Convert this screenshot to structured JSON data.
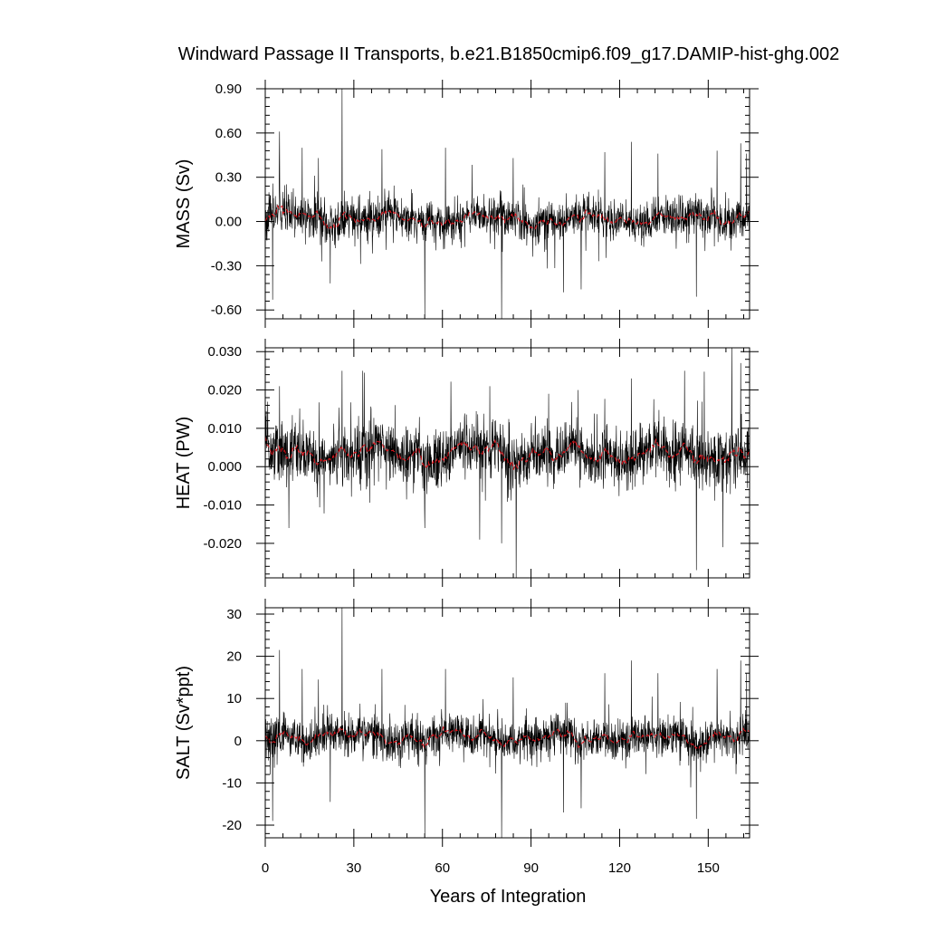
{
  "title": "Windward Passage II Transports, b.e21.B1850cmip6.f09_g17.DAMIP-hist-ghg.002",
  "xlabel": "Years of Integration",
  "colors": {
    "raw": "#000000",
    "smooth": "#e0141c",
    "frame": "#000000"
  },
  "chart_data": [
    {
      "type": "line",
      "panel": "mass",
      "ylabel": "MASS (Sv)",
      "xlim": [
        0,
        164
      ],
      "ylim": [
        -0.66,
        0.9
      ],
      "xticks": [
        0,
        30,
        60,
        90,
        120,
        150
      ],
      "yticks": [
        -0.6,
        -0.3,
        0.0,
        0.3,
        0.6,
        0.9
      ],
      "ytick_labels": [
        "-0.60",
        "-0.30",
        "0.00",
        "0.30",
        "0.60",
        "0.90"
      ],
      "series": [
        {
          "role": "monthly",
          "base_noise": 0.07,
          "mean": 0.02
        },
        {
          "role": "smoothed",
          "amplitude": 0.03
        }
      ],
      "spikes": [
        {
          "x": 2.5,
          "y": -0.53
        },
        {
          "x": 4.8,
          "y": 0.61
        },
        {
          "x": 12.5,
          "y": 0.5
        },
        {
          "x": 18.0,
          "y": 0.43
        },
        {
          "x": 22.0,
          "y": -0.42
        },
        {
          "x": 26.0,
          "y": 0.9
        },
        {
          "x": 39.5,
          "y": 0.49
        },
        {
          "x": 54.0,
          "y": -0.63
        },
        {
          "x": 61.0,
          "y": 0.5
        },
        {
          "x": 80.0,
          "y": -0.66
        },
        {
          "x": 84.0,
          "y": 0.43
        },
        {
          "x": 101.0,
          "y": -0.48
        },
        {
          "x": 107.0,
          "y": -0.46
        },
        {
          "x": 115.0,
          "y": 0.47
        },
        {
          "x": 124.0,
          "y": 0.54
        },
        {
          "x": 133.0,
          "y": 0.46
        },
        {
          "x": 146.0,
          "y": -0.51
        },
        {
          "x": 153.0,
          "y": 0.48
        },
        {
          "x": 161.0,
          "y": 0.53
        },
        {
          "x": 163.0,
          "y": 0.46
        }
      ]
    },
    {
      "type": "line",
      "panel": "heat",
      "ylabel": "HEAT (PW)",
      "xlim": [
        0,
        164
      ],
      "ylim": [
        -0.029,
        0.031
      ],
      "xticks": [
        0,
        30,
        60,
        90,
        120,
        150
      ],
      "yticks": [
        -0.02,
        -0.01,
        0.0,
        0.01,
        0.02,
        0.03
      ],
      "ytick_labels": [
        "-0.020",
        "-0.010",
        "0.000",
        "0.010",
        "0.020",
        "0.030"
      ],
      "series": [
        {
          "role": "monthly",
          "base_noise": 0.004,
          "mean": 0.0035
        },
        {
          "role": "smoothed",
          "amplitude": 0.002
        }
      ],
      "spikes": [
        {
          "x": 4.8,
          "y": 0.021
        },
        {
          "x": 8.0,
          "y": -0.016
        },
        {
          "x": 26.0,
          "y": 0.025
        },
        {
          "x": 33.0,
          "y": 0.025
        },
        {
          "x": 54.0,
          "y": -0.016
        },
        {
          "x": 76.0,
          "y": 0.021
        },
        {
          "x": 80.0,
          "y": -0.02
        },
        {
          "x": 85.0,
          "y": -0.029
        },
        {
          "x": 96.0,
          "y": 0.019
        },
        {
          "x": 106.0,
          "y": 0.02
        },
        {
          "x": 124.0,
          "y": 0.023
        },
        {
          "x": 142.0,
          "y": 0.025
        },
        {
          "x": 146.0,
          "y": -0.027
        },
        {
          "x": 155.0,
          "y": -0.021
        },
        {
          "x": 158.0,
          "y": 0.031
        },
        {
          "x": 161.0,
          "y": 0.027
        }
      ]
    },
    {
      "type": "line",
      "panel": "salt",
      "ylabel": "SALT (Sv*ppt)",
      "xlim": [
        0,
        164
      ],
      "ylim": [
        -23.0,
        31.5
      ],
      "xticks": [
        0,
        30,
        60,
        90,
        120,
        150
      ],
      "yticks": [
        -20,
        -10,
        0,
        10,
        20,
        30
      ],
      "ytick_labels": [
        "-20",
        "-10",
        "0",
        "10",
        "20",
        "30"
      ],
      "series": [
        {
          "role": "monthly",
          "base_noise": 2.5,
          "mean": 0.8
        },
        {
          "role": "smoothed",
          "amplitude": 1.0
        }
      ],
      "spikes": [
        {
          "x": 2.5,
          "y": -19.0
        },
        {
          "x": 4.8,
          "y": 21.5
        },
        {
          "x": 12.5,
          "y": 17.0
        },
        {
          "x": 18.0,
          "y": 14.5
        },
        {
          "x": 22.0,
          "y": -14.5
        },
        {
          "x": 26.0,
          "y": 31.5
        },
        {
          "x": 39.5,
          "y": 17.0
        },
        {
          "x": 54.0,
          "y": -22.0
        },
        {
          "x": 61.0,
          "y": 17.0
        },
        {
          "x": 80.0,
          "y": -23.0
        },
        {
          "x": 84.0,
          "y": 15.0
        },
        {
          "x": 101.0,
          "y": -17.0
        },
        {
          "x": 107.0,
          "y": -16.0
        },
        {
          "x": 115.0,
          "y": 16.0
        },
        {
          "x": 124.0,
          "y": 19.0
        },
        {
          "x": 133.0,
          "y": 16.0
        },
        {
          "x": 146.0,
          "y": -18.5
        },
        {
          "x": 153.0,
          "y": 17.0
        },
        {
          "x": 161.0,
          "y": 19.0
        },
        {
          "x": 163.0,
          "y": 16.0
        }
      ]
    }
  ]
}
